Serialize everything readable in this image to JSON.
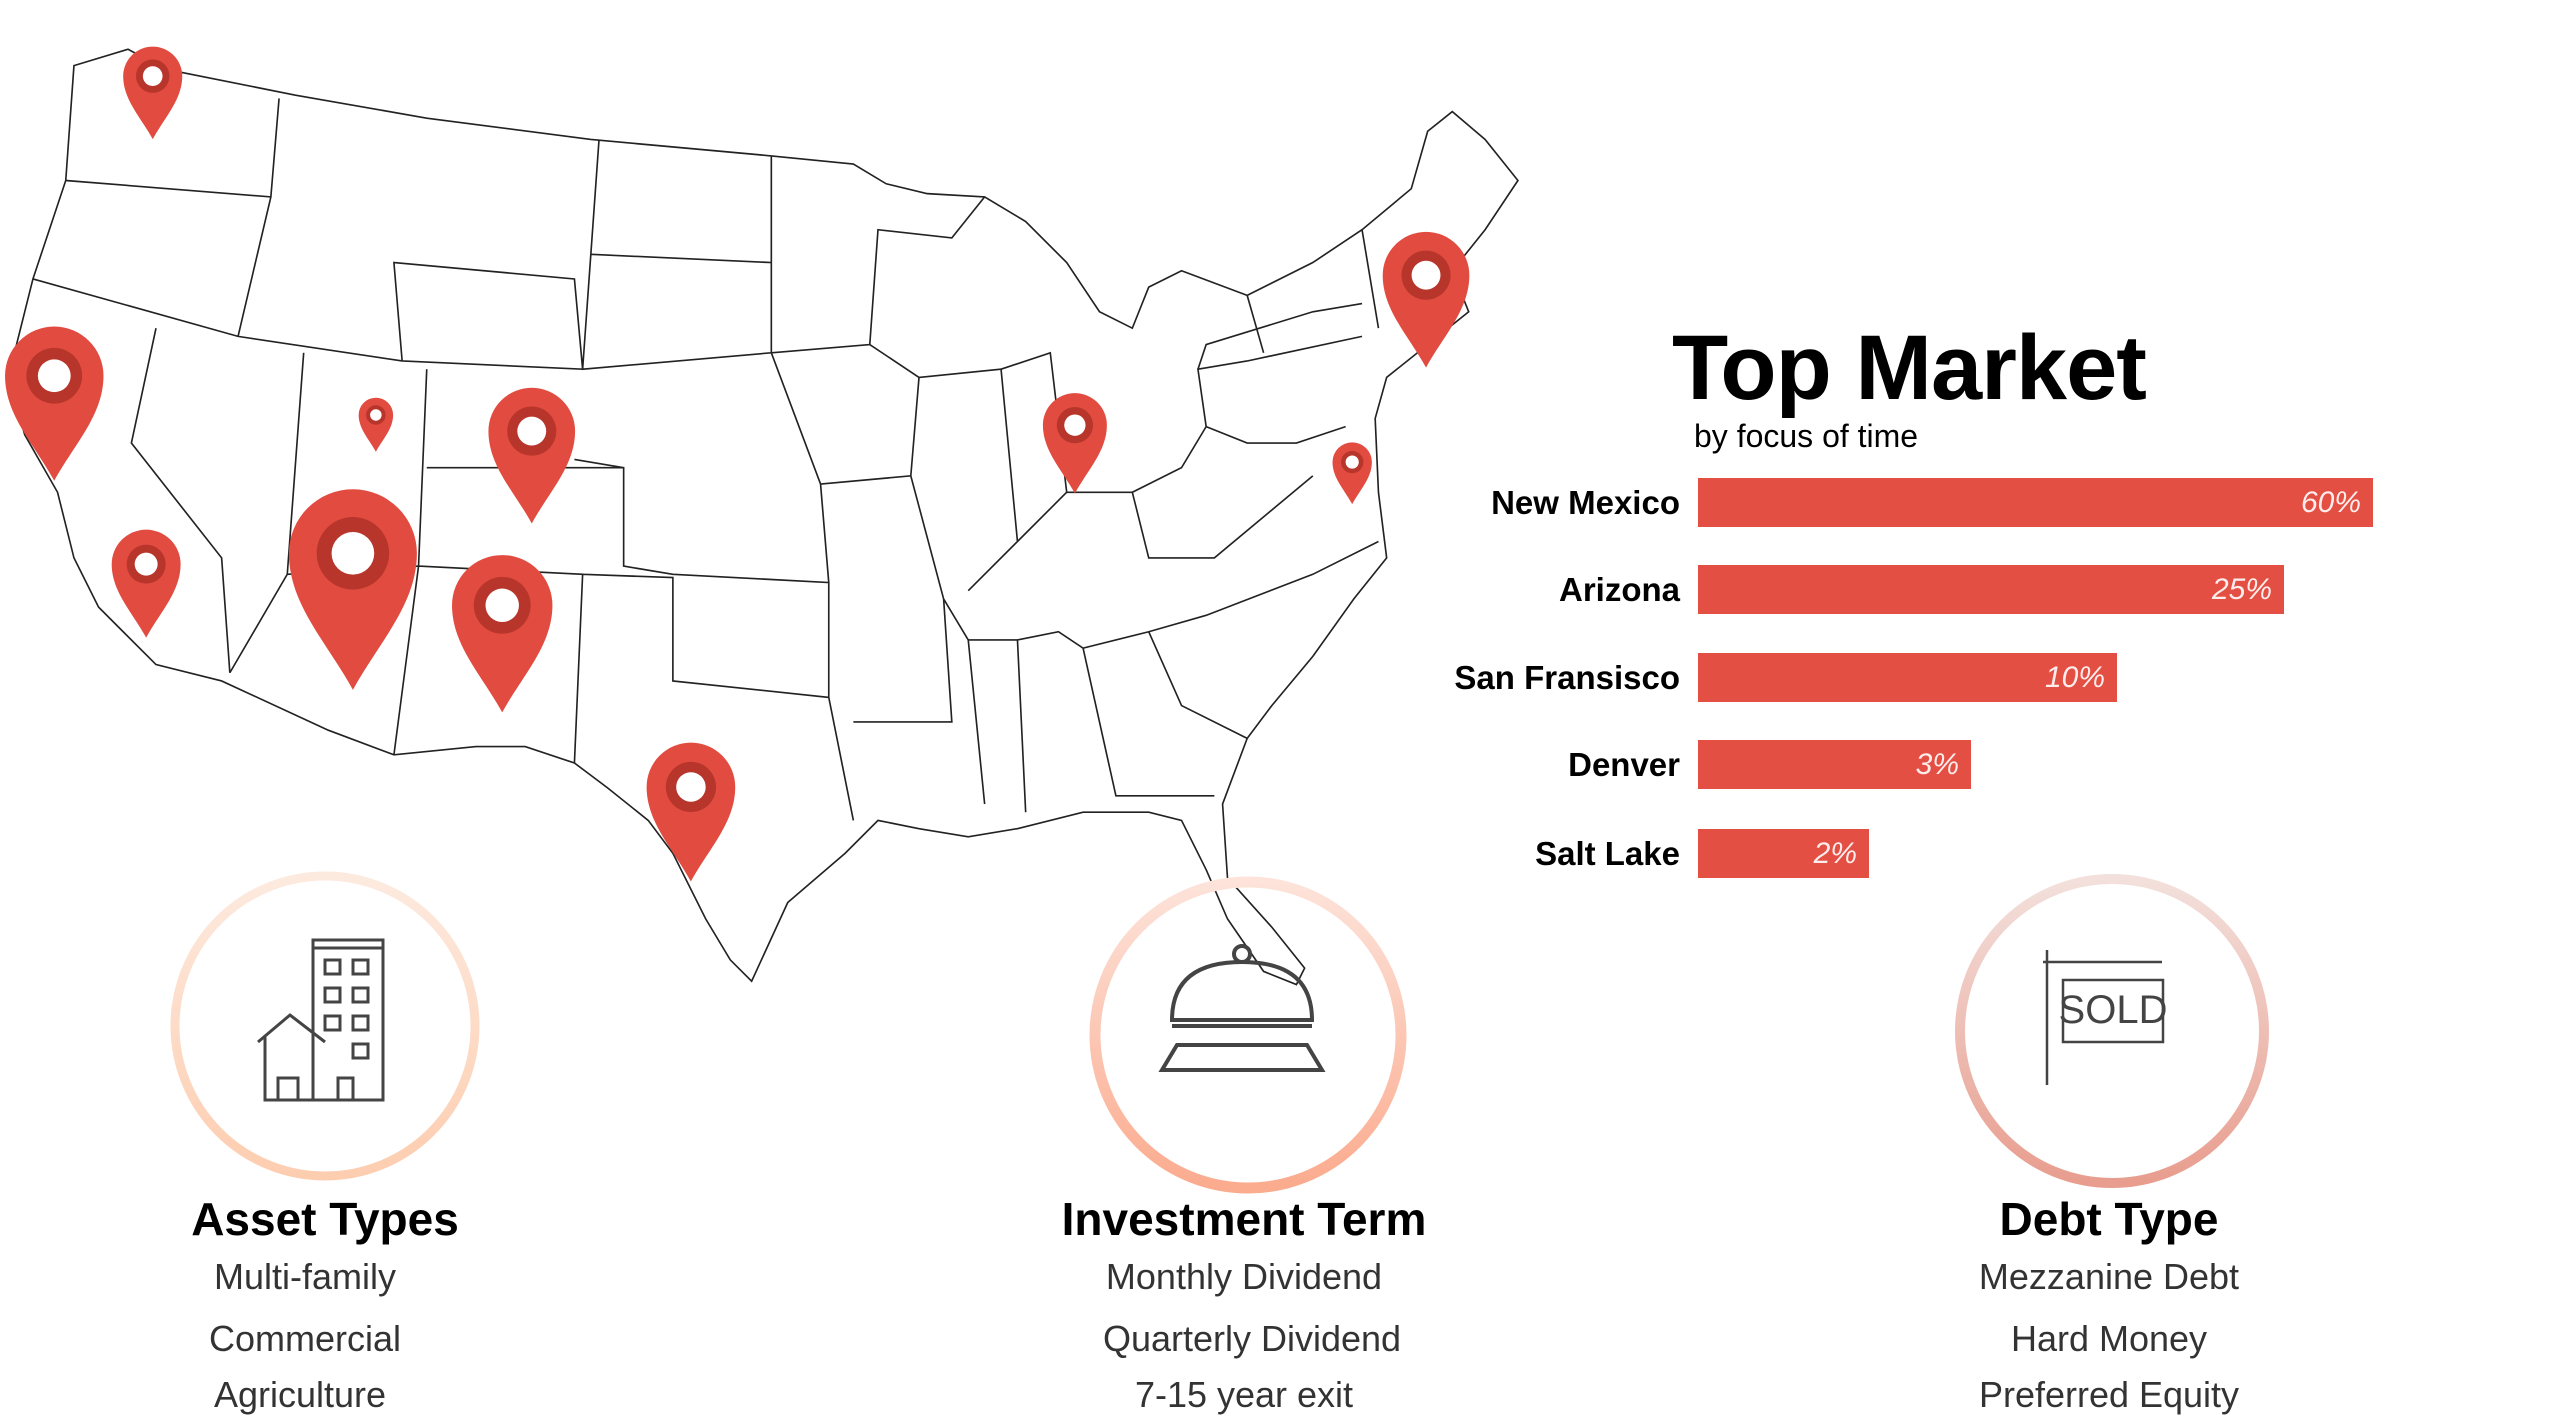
{
  "chart_data": {
    "type": "bar",
    "orientation": "horizontal",
    "title": "Top Market",
    "subtitle": "by focus of time",
    "categories": [
      "New Mexico",
      "Arizona",
      "San Fransisco",
      "Denver",
      "Salt Lake"
    ],
    "values": [
      60,
      25,
      10,
      3,
      2
    ],
    "value_labels": [
      "60%",
      "25%",
      "10%",
      "3%",
      "2%"
    ],
    "unit": "%",
    "bar_color": "#e44f43",
    "grid": false
  },
  "map": {
    "pin_color": "#e24b3f",
    "pin_inner_color": "#b8352c",
    "outline_color": "#222222"
  },
  "cards": [
    {
      "title": "Asset Types",
      "icon": "building-house-icon",
      "ring_colors": [
        "#fdeadf",
        "#fdcdb0"
      ],
      "items": [
        "Multi-family",
        "Commercial",
        "Agriculture"
      ]
    },
    {
      "title": "Investment Term",
      "icon": "service-bell-icon",
      "ring_colors": [
        "#fde3da",
        "#fbab8e"
      ],
      "items": [
        "Monthly Dividend",
        "Quarterly Dividend",
        "7-15 year exit"
      ]
    },
    {
      "title": "Debt Type",
      "icon": "sold-sign-icon",
      "ring_colors": [
        "#f3e0dc",
        "#e89d8e"
      ],
      "items": [
        "Mezzanine Debt",
        "Hard Money",
        "Preferred Equity"
      ]
    }
  ],
  "sold_sign_text": "SOLD"
}
